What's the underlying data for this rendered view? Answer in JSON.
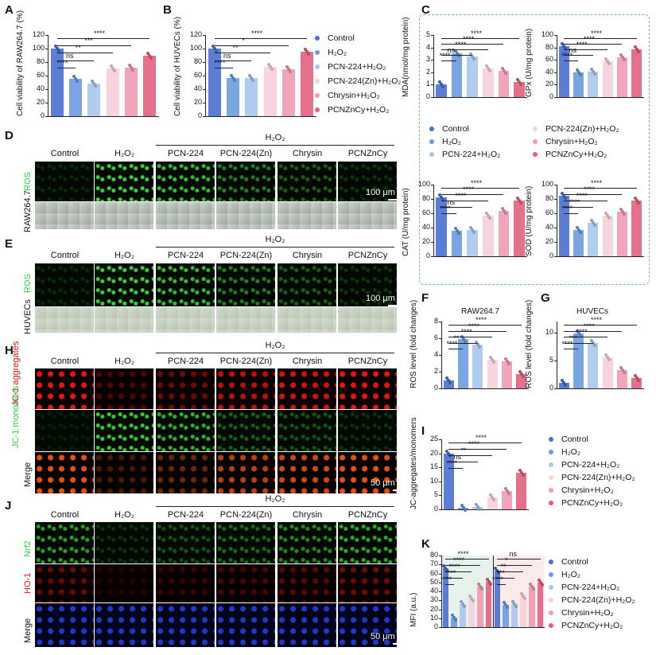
{
  "panels": {
    "A": "A",
    "B": "B",
    "C": "C",
    "D": "D",
    "E": "E",
    "F": "F",
    "G": "G",
    "H": "H",
    "I": "I",
    "J": "J",
    "K": "K"
  },
  "group_labels": [
    "Control",
    "H₂O₂",
    "PCN-224",
    "PCN-224(Zn)",
    "Chrysin",
    "PCNZnCy"
  ],
  "h2o2_header": "H₂O₂",
  "legend_items": [
    "Control",
    "H₂O₂",
    "PCN-224+H₂O₂",
    "PCN-224(Zn)+H₂O₂",
    "Chrysin+H₂O₂",
    "PCNZnCy+H₂O₂"
  ],
  "colors": {
    "control": "#4a6fd1",
    "h2o2": "#6a9be0",
    "pcn224": "#a9c6ef",
    "pcn224zn": "#f7d0da",
    "chrysin": "#f19ab2",
    "pcnznCy": "#e2607f",
    "ros_green": "#2ecc40",
    "jc_red": "#e01010",
    "dashed_box": "#7ac07a"
  },
  "scale_bars": {
    "d": "100 μm",
    "e": "100 μm",
    "h": "50 μm",
    "j": "50 μm"
  },
  "row_labels": {
    "d_stain": "ROS",
    "d_cell": "RAW264.7",
    "e_stain": "ROS",
    "e_cell": "HUVECs",
    "h_1": "JC-1 aggregates",
    "h_2": "JC-1 monomers",
    "h_3": "Merge",
    "j_1": "Nrf2",
    "j_2": "HO-1",
    "j_3": "Merge"
  },
  "sig": {
    "s4": "****",
    "s3": "***",
    "s2": "**",
    "s1": "*",
    "ns": "ns"
  },
  "chart_data": [
    {
      "id": "A",
      "type": "bar",
      "ylabel": "Cell viability of RAW264.7 (%)",
      "ylim": [
        0,
        120
      ],
      "ticks": [
        "0",
        "20",
        "40",
        "60",
        "80",
        "100",
        "120"
      ],
      "values": [
        100,
        55,
        48,
        71,
        72,
        90
      ],
      "annotations": [
        "****",
        "ns",
        "**",
        "***",
        "****"
      ]
    },
    {
      "id": "B",
      "type": "bar",
      "ylabel": "Cell viability of HUVECs (%)",
      "ylim": [
        0,
        120
      ],
      "ticks": [
        "0",
        "20",
        "40",
        "60",
        "80",
        "100",
        "120"
      ],
      "values": [
        100,
        57,
        56,
        73,
        70,
        95
      ],
      "annotations": [
        "****",
        "ns",
        "**",
        "*",
        "****"
      ]
    },
    {
      "id": "C1",
      "type": "bar",
      "ylabel": "MDA(nmol/mg protein)",
      "ylim": [
        0,
        5
      ],
      "ticks": [
        "0",
        "1",
        "2",
        "3",
        "4",
        "5"
      ],
      "values": [
        1.0,
        3.5,
        3.3,
        2.3,
        2.1,
        1.2
      ],
      "annotations": [
        "****",
        "ns",
        "****",
        "****",
        "****"
      ]
    },
    {
      "id": "C2",
      "type": "bar",
      "ylabel": "GPx (U/mg protein)",
      "ylim": [
        0,
        100
      ],
      "ticks": [
        "0",
        "20",
        "40",
        "60",
        "80",
        "100"
      ],
      "values": [
        82,
        40,
        41,
        58,
        64,
        77
      ],
      "annotations": [
        "****",
        "ns",
        "****",
        "****",
        "****"
      ]
    },
    {
      "id": "C3",
      "type": "bar",
      "ylabel": "CAT (U/mg protein)",
      "ylim": [
        0,
        100
      ],
      "ticks": [
        "0",
        "20",
        "40",
        "60",
        "80",
        "100"
      ],
      "values": [
        82,
        36,
        37,
        57,
        63,
        78
      ],
      "annotations": [
        "****",
        "ns",
        "****",
        "****",
        "****"
      ]
    },
    {
      "id": "C4",
      "type": "bar",
      "ylabel": "SOD (U/mg protein)",
      "ylim": [
        0,
        100
      ],
      "ticks": [
        "0",
        "20",
        "40",
        "60",
        "80",
        "100"
      ],
      "values": [
        84,
        37,
        47,
        57,
        62,
        78
      ],
      "annotations": [
        "****",
        "****",
        "****",
        "****",
        "****"
      ]
    },
    {
      "id": "F",
      "type": "bar",
      "title": "RAW264.7",
      "ylabel": "ROS level (fold changes)",
      "ylim": [
        0,
        8
      ],
      "ticks": [
        "0",
        "2",
        "4",
        "6",
        "8"
      ],
      "values": [
        1.0,
        5.9,
        5.2,
        3.4,
        3.2,
        1.7
      ],
      "annotations": [
        "****",
        "**",
        "****",
        "****",
        "****"
      ]
    },
    {
      "id": "G",
      "type": "bar",
      "title": "HUVECs",
      "ylabel": "ROS level (fold changes)",
      "ylim": [
        0,
        12
      ],
      "ticks": [
        "0",
        "5",
        "10"
      ],
      "values": [
        1.0,
        9.9,
        8.2,
        5.6,
        3.3,
        1.8
      ],
      "annotations": [
        "****",
        "***",
        "****",
        "****",
        "****"
      ]
    },
    {
      "id": "I",
      "type": "bar",
      "ylabel": "JC-aggregates/monomers",
      "ylim": [
        0,
        25
      ],
      "ticks": [
        "0",
        "5",
        "10",
        "15",
        "20",
        "25"
      ],
      "values": [
        20,
        0.5,
        0.8,
        4.2,
        6.5,
        13
      ],
      "annotations": [
        "****",
        "ns",
        "**",
        "****",
        "****"
      ]
    },
    {
      "id": "K",
      "type": "bar",
      "ylabel": "MFI (a.u.)",
      "ylim": [
        0,
        80
      ],
      "ticks": [
        "0",
        "10",
        "20",
        "30",
        "40",
        "50",
        "60",
        "70",
        "80"
      ],
      "series": [
        {
          "name": "Nrf2",
          "values": [
            66,
            11,
            26,
            32,
            45,
            51
          ]
        },
        {
          "name": "HO-1",
          "values": [
            63,
            25,
            26,
            35,
            45,
            50
          ]
        }
      ],
      "annotations": [
        "****",
        "****",
        "****",
        "****",
        "****",
        "****",
        "***",
        "**",
        "*",
        "ns"
      ]
    }
  ]
}
